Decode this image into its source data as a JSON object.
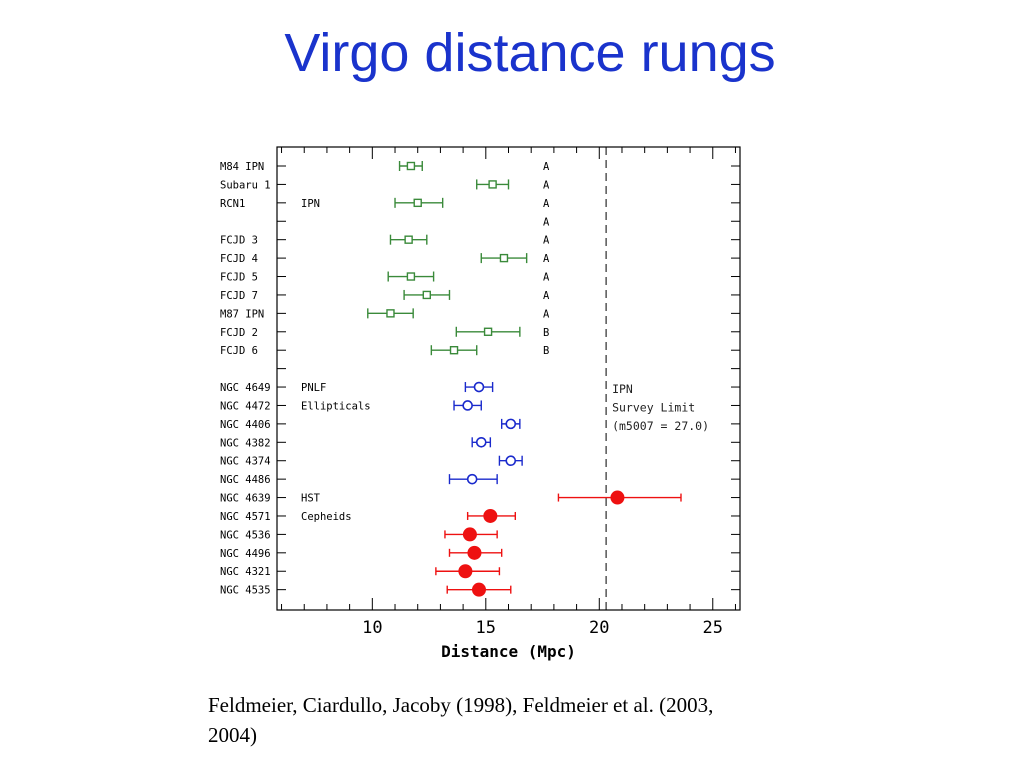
{
  "slide": {
    "title": "Virgo distance rungs",
    "caption": "Feldmeier, Ciardullo, Jacoby (1998), Feldmeier et al. (2003, 2004)"
  },
  "chart_data": {
    "type": "scatter",
    "xlabel": "Distance (Mpc)",
    "xlim": [
      5.8,
      26.2
    ],
    "xticks": [
      10,
      15,
      20,
      25
    ],
    "grid": false,
    "survey_limit": {
      "x": 20.3,
      "label_lines": [
        "IPN",
        "Survey Limit",
        "(m5007 = 27.0)"
      ]
    },
    "group_labels": [
      {
        "row": 3,
        "text": "IPN"
      },
      {
        "row": 13,
        "text": "PNLF"
      },
      {
        "row": 14,
        "text": "Ellipticals"
      },
      {
        "row": 19,
        "text": "HST"
      },
      {
        "row": 20,
        "text": "Cepheids"
      }
    ],
    "series": [
      {
        "name": "IPN",
        "marker": "square",
        "color": "#3a8a3a",
        "points": [
          {
            "label": "M84 IPN",
            "row": 1,
            "x": 11.7,
            "lo": 11.2,
            "hi": 12.2,
            "grade": "A"
          },
          {
            "label": "Subaru 1",
            "row": 2,
            "x": 15.3,
            "lo": 14.6,
            "hi": 16.0,
            "grade": "A"
          },
          {
            "label": "RCN1",
            "row": 3,
            "x": 12.0,
            "lo": 11.0,
            "hi": 13.1,
            "grade": "A"
          },
          {
            "label": "",
            "row": 4,
            "x": null,
            "lo": null,
            "hi": null,
            "grade": "A"
          },
          {
            "label": "FCJD 3",
            "row": 5,
            "x": 11.6,
            "lo": 10.8,
            "hi": 12.4,
            "grade": "A"
          },
          {
            "label": "FCJD 4",
            "row": 6,
            "x": 15.8,
            "lo": 14.8,
            "hi": 16.8,
            "grade": "A"
          },
          {
            "label": "FCJD 5",
            "row": 7,
            "x": 11.7,
            "lo": 10.7,
            "hi": 12.7,
            "grade": "A"
          },
          {
            "label": "FCJD 7",
            "row": 8,
            "x": 12.4,
            "lo": 11.4,
            "hi": 13.4,
            "grade": "A"
          },
          {
            "label": "M87 IPN",
            "row": 9,
            "x": 10.8,
            "lo": 9.8,
            "hi": 11.8,
            "grade": "A"
          },
          {
            "label": "FCJD 2",
            "row": 10,
            "x": 15.1,
            "lo": 13.7,
            "hi": 16.5,
            "grade": "B"
          },
          {
            "label": "FCJD 6",
            "row": 11,
            "x": 13.6,
            "lo": 12.6,
            "hi": 14.6,
            "grade": "B"
          }
        ]
      },
      {
        "name": "PNLF",
        "marker": "circle-open",
        "color": "#1a2acc",
        "points": [
          {
            "label": "NGC 4649",
            "row": 13,
            "x": 14.7,
            "lo": 14.1,
            "hi": 15.3
          },
          {
            "label": "NGC 4472",
            "row": 14,
            "x": 14.2,
            "lo": 13.6,
            "hi": 14.8
          },
          {
            "label": "NGC 4406",
            "row": 15,
            "x": 16.1,
            "lo": 15.7,
            "hi": 16.5
          },
          {
            "label": "NGC 4382",
            "row": 16,
            "x": 14.8,
            "lo": 14.4,
            "hi": 15.2
          },
          {
            "label": "NGC 4374",
            "row": 17,
            "x": 16.1,
            "lo": 15.6,
            "hi": 16.6
          },
          {
            "label": "NGC 4486",
            "row": 18,
            "x": 14.4,
            "lo": 13.4,
            "hi": 15.5
          }
        ]
      },
      {
        "name": "HST Cepheids",
        "marker": "circle-filled",
        "color": "#ee1111",
        "points": [
          {
            "label": "NGC 4639",
            "row": 19,
            "x": 20.8,
            "lo": 18.2,
            "hi": 23.6
          },
          {
            "label": "NGC 4571",
            "row": 20,
            "x": 15.2,
            "lo": 14.2,
            "hi": 16.3
          },
          {
            "label": "NGC 4536",
            "row": 21,
            "x": 14.3,
            "lo": 13.2,
            "hi": 15.5
          },
          {
            "label": "NGC 4496",
            "row": 22,
            "x": 14.5,
            "lo": 13.4,
            "hi": 15.7
          },
          {
            "label": "NGC 4321",
            "row": 23,
            "x": 14.1,
            "lo": 12.8,
            "hi": 15.6
          },
          {
            "label": "NGC 4535",
            "row": 24,
            "x": 14.7,
            "lo": 13.3,
            "hi": 16.1
          }
        ]
      }
    ]
  }
}
